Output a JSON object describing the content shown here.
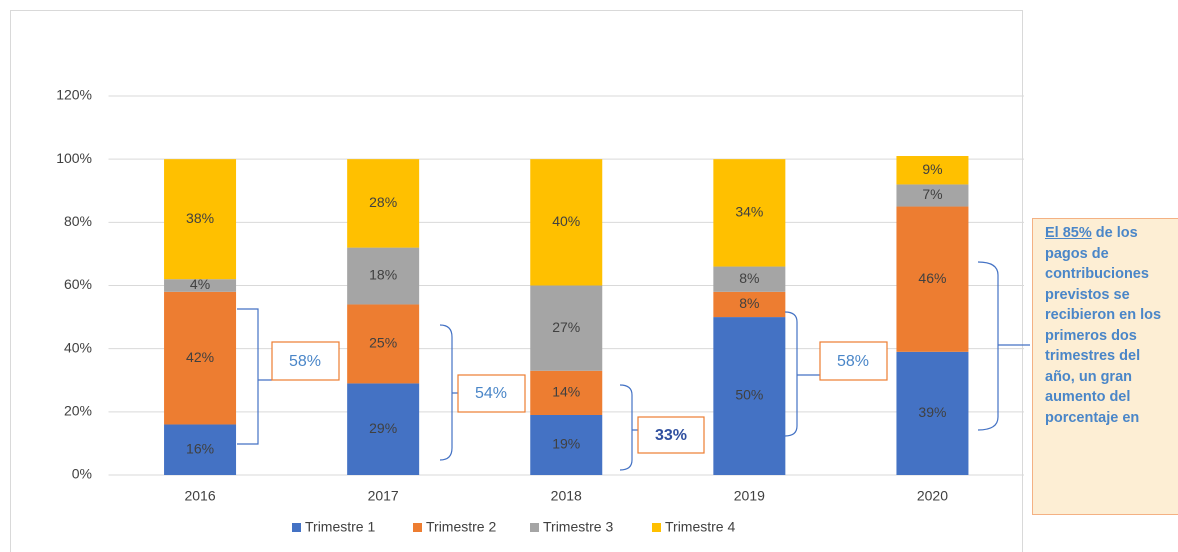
{
  "chart_data": {
    "type": "stacked_bar",
    "categories": [
      "2016",
      "2017",
      "2018",
      "2019",
      "2020"
    ],
    "series": [
      {
        "name": "Trimestre 1",
        "color": "#4472c4",
        "values": [
          16,
          29,
          19,
          50,
          39
        ],
        "value_labels": [
          "16%",
          "29%",
          "19%",
          "50%",
          "39%"
        ]
      },
      {
        "name": "Trimestre 2",
        "color": "#ed7d31",
        "values": [
          42,
          25,
          14,
          8,
          46
        ],
        "value_labels": [
          "42%",
          "25%",
          "14%",
          "8%",
          "46%"
        ]
      },
      {
        "name": "Trimestre 3",
        "color": "#a5a5a5",
        "values": [
          4,
          18,
          27,
          8,
          7
        ],
        "value_labels": [
          "4%",
          "18%",
          "27%",
          "8%",
          "7%"
        ]
      },
      {
        "name": "Trimestre 4",
        "color": "#ffc000",
        "values": [
          38,
          28,
          40,
          34,
          9
        ],
        "value_labels": [
          "38%",
          "28%",
          "40%",
          "34%",
          "9%"
        ]
      }
    ],
    "ylim": [
      0,
      120
    ],
    "yticks": [
      {
        "value": 0,
        "label": "0%"
      },
      {
        "value": 20,
        "label": "20%"
      },
      {
        "value": 40,
        "label": "40%"
      },
      {
        "value": 60,
        "label": "60%"
      },
      {
        "value": 80,
        "label": "80%"
      },
      {
        "value": 100,
        "label": "100%"
      },
      {
        "value": 120,
        "label": "120%"
      }
    ],
    "grid": true,
    "legend": "bottom",
    "annotations": [
      "58%",
      "54%",
      "33%",
      "58%"
    ],
    "note": {
      "highlight": "El 85%",
      "text": "de los pagos de contribuciones previstos se recibieron en los primeros dos trimestres del año, un gran aumento del porcentaje en"
    }
  }
}
